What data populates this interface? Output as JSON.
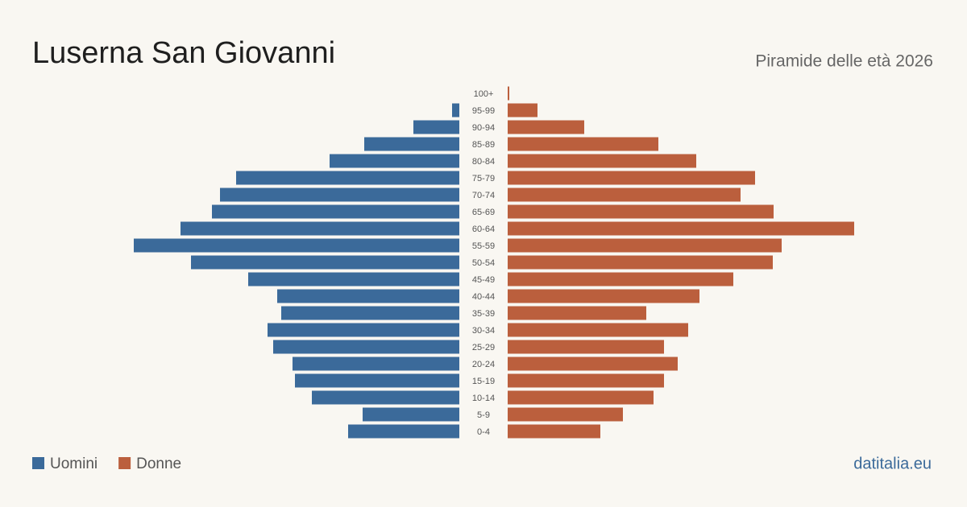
{
  "chart_data": {
    "type": "pyramid",
    "title": "Luserna San Giovanni",
    "subtitle": "Piramide delle età 2026",
    "source": "datitalia.eu",
    "categories": [
      "100+",
      "95-99",
      "90-94",
      "85-89",
      "80-84",
      "75-79",
      "70-74",
      "65-69",
      "60-64",
      "55-59",
      "50-54",
      "45-49",
      "40-44",
      "35-39",
      "30-34",
      "25-29",
      "20-24",
      "15-19",
      "10-14",
      "5-9",
      "0-4"
    ],
    "series": [
      {
        "name": "Uomini",
        "color": "#3b6a9a",
        "values": [
          0,
          9,
          57,
          118,
          161,
          277,
          297,
          307,
          346,
          404,
          333,
          262,
          226,
          221,
          238,
          231,
          207,
          204,
          183,
          120,
          138
        ]
      },
      {
        "name": "Donne",
        "color": "#bb5f3d",
        "values": [
          2,
          37,
          95,
          187,
          234,
          307,
          289,
          330,
          430,
          340,
          329,
          280,
          238,
          172,
          224,
          194,
          211,
          194,
          181,
          143,
          115
        ]
      }
    ]
  }
}
